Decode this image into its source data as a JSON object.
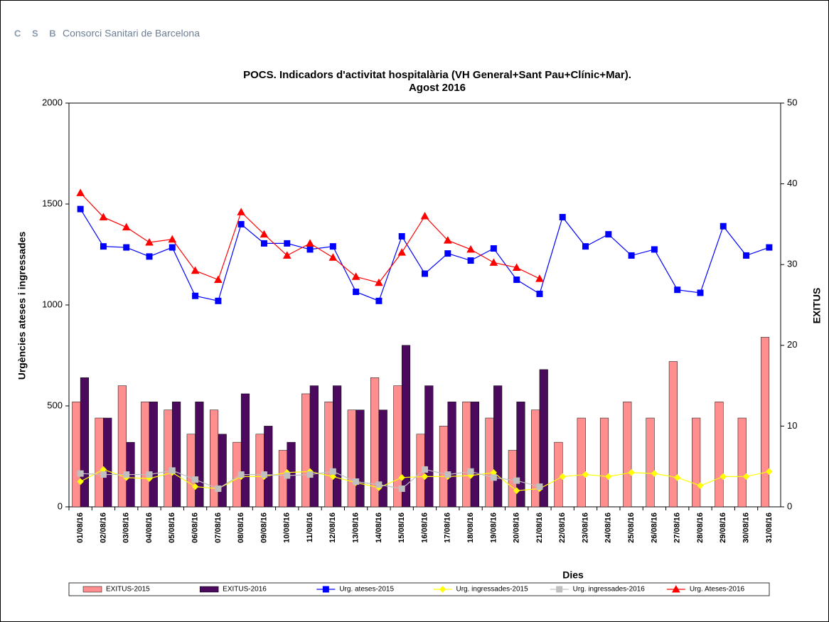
{
  "header": {
    "logo": "C S B",
    "organization": "Consorci Sanitari de Barcelona"
  },
  "chart_data": {
    "type": "combo",
    "title": [
      "POCS.  Indicadors d'activitat hospitalària (VH General+Sant Pau+Clínic+Mar).",
      "Agost 2016"
    ],
    "x_label": "Dies",
    "y_label": "Urgències ateses i ingressades",
    "y2_label": "EXITUS",
    "categories": [
      "01/08/16",
      "02/08/16",
      "03/08/16",
      "04/08/16",
      "05/08/16",
      "06/08/16",
      "07/08/16",
      "08/08/16",
      "09/08/16",
      "10/08/16",
      "11/08/16",
      "12/08/16",
      "13/08/16",
      "14/08/16",
      "15/08/16",
      "16/08/16",
      "17/08/16",
      "18/08/16",
      "19/08/16",
      "20/08/16",
      "21/08/16",
      "22/08/16",
      "23/08/16",
      "24/08/16",
      "25/08/16",
      "26/08/16",
      "27/08/16",
      "28/08/16",
      "29/08/16",
      "30/08/16",
      "31/08/16"
    ],
    "ylim": [
      0,
      2000
    ],
    "yticks": [
      0,
      500,
      1000,
      1500,
      2000
    ],
    "y2lim": [
      0,
      50
    ],
    "y2ticks": [
      0,
      10,
      20,
      30,
      40,
      50
    ],
    "legend": "bottom",
    "series": [
      {
        "name": "EXITUS-2015",
        "type": "bar",
        "axis": "y2",
        "color": "#ff8f8f",
        "values": [
          13,
          11,
          15,
          13,
          12,
          9,
          12,
          8,
          9,
          7,
          14,
          13,
          12,
          16,
          15,
          9,
          10,
          13,
          11,
          7,
          12,
          8,
          11,
          11,
          13,
          11,
          18,
          11,
          13,
          11,
          21
        ]
      },
      {
        "name": "EXITUS-2016",
        "type": "bar",
        "axis": "y2",
        "color": "#4b0a5e",
        "values": [
          16,
          11,
          8,
          13,
          13,
          13,
          9,
          14,
          10,
          8,
          15,
          15,
          12,
          12,
          20,
          15,
          13,
          13,
          15,
          13,
          17,
          null,
          null,
          null,
          null,
          null,
          null,
          null,
          null,
          null,
          null
        ]
      },
      {
        "name": "Urg. ateses-2015",
        "type": "line",
        "marker": "square",
        "color": "#0000ff",
        "values": [
          1475,
          1290,
          1285,
          1240,
          1285,
          1045,
          1020,
          1400,
          1305,
          1305,
          1275,
          1290,
          1065,
          1020,
          1340,
          1155,
          1255,
          1220,
          1280,
          1125,
          1055,
          1435,
          1290,
          1350,
          1245,
          1275,
          1075,
          1060,
          1390,
          1245,
          1285
        ]
      },
      {
        "name": "Urg. ingressades-2015",
        "type": "line",
        "marker": "diamond",
        "color": "#ffff00",
        "values": [
          125,
          185,
          145,
          140,
          170,
          100,
          90,
          150,
          150,
          170,
          175,
          150,
          120,
          95,
          145,
          150,
          150,
          155,
          170,
          80,
          90,
          150,
          160,
          150,
          170,
          165,
          145,
          105,
          150,
          150,
          175
        ]
      },
      {
        "name": "Urg. ingressades-2016",
        "type": "line",
        "marker": "square",
        "color": "#c0c0c0",
        "values": [
          165,
          160,
          160,
          160,
          180,
          135,
          90,
          160,
          160,
          155,
          160,
          175,
          125,
          110,
          90,
          185,
          160,
          175,
          145,
          130,
          100,
          null,
          null,
          null,
          null,
          null,
          null,
          null,
          null,
          null,
          null
        ]
      },
      {
        "name": "Urg. Ateses-2016",
        "type": "line",
        "marker": "triangle",
        "color": "#ff0000",
        "values": [
          1555,
          1435,
          1385,
          1310,
          1325,
          1170,
          1125,
          1460,
          1350,
          1245,
          1305,
          1235,
          1140,
          1110,
          1260,
          1440,
          1320,
          1275,
          1210,
          1185,
          1130,
          null,
          null,
          null,
          null,
          null,
          null,
          null,
          null,
          null,
          null
        ]
      }
    ]
  }
}
